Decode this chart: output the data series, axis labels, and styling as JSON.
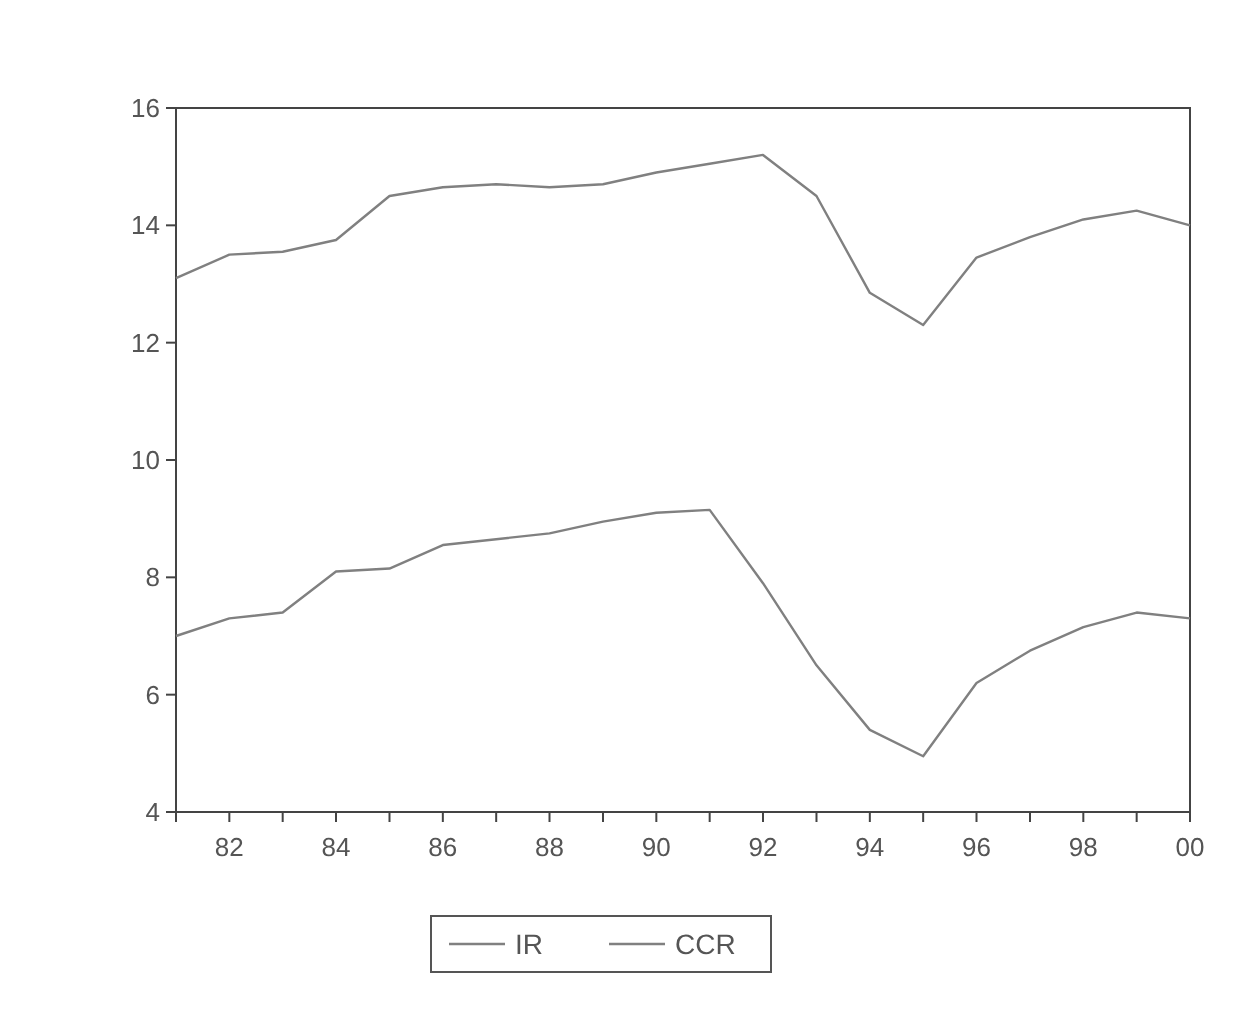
{
  "chart_data": {
    "type": "line",
    "x": [
      "1981",
      "1982",
      "1983",
      "1984",
      "1985",
      "1986",
      "1987",
      "1988",
      "1989",
      "1990",
      "1991",
      "1992",
      "1993",
      "1994",
      "1995",
      "1996",
      "1997",
      "1998",
      "1999",
      "2000"
    ],
    "series": [
      {
        "name": "IR",
        "color": "#808080",
        "values": [
          7.0,
          7.3,
          7.4,
          8.1,
          8.15,
          8.55,
          8.65,
          8.75,
          8.95,
          9.1,
          9.15,
          7.9,
          6.5,
          5.4,
          4.95,
          6.2,
          6.75,
          7.15,
          7.4,
          7.3
        ]
      },
      {
        "name": "CCR",
        "color": "#808080",
        "values": [
          13.1,
          13.5,
          13.55,
          13.75,
          14.5,
          14.65,
          14.7,
          14.65,
          14.7,
          14.9,
          15.05,
          15.2,
          14.5,
          12.85,
          12.3,
          13.45,
          13.8,
          14.1,
          14.25,
          14.0
        ]
      }
    ],
    "xlim": [
      "1981",
      "2000"
    ],
    "xticks": [
      {
        "value": "1981",
        "label": null
      },
      {
        "value": "1982",
        "label": "82"
      },
      {
        "value": "1983",
        "label": null
      },
      {
        "value": "1984",
        "label": "84"
      },
      {
        "value": "1985",
        "label": null
      },
      {
        "value": "1986",
        "label": "86"
      },
      {
        "value": "1987",
        "label": null
      },
      {
        "value": "1988",
        "label": "88"
      },
      {
        "value": "1989",
        "label": null
      },
      {
        "value": "1990",
        "label": "90"
      },
      {
        "value": "1991",
        "label": null
      },
      {
        "value": "1992",
        "label": "92"
      },
      {
        "value": "1993",
        "label": null
      },
      {
        "value": "1994",
        "label": "94"
      },
      {
        "value": "1995",
        "label": null
      },
      {
        "value": "1996",
        "label": "96"
      },
      {
        "value": "1997",
        "label": null
      },
      {
        "value": "1998",
        "label": "98"
      },
      {
        "value": "1999",
        "label": null
      },
      {
        "value": "2000",
        "label": "00"
      }
    ],
    "ylim": [
      4,
      16
    ],
    "yticks": [
      4,
      6,
      8,
      10,
      12,
      14,
      16
    ],
    "grid": false,
    "legend": "bottom",
    "line_style": "solid",
    "marker": "none"
  }
}
